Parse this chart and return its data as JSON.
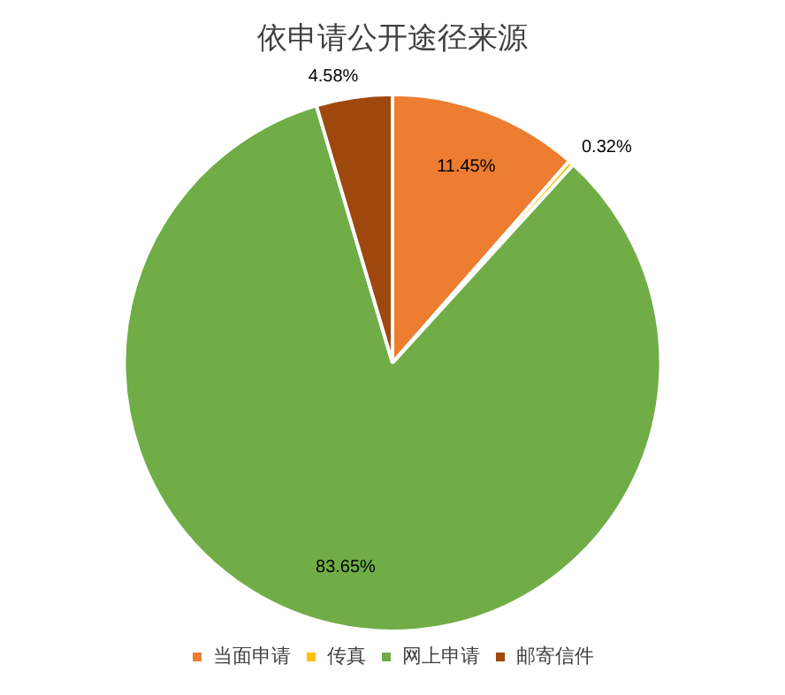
{
  "chart_data": {
    "type": "pie",
    "title": "依申请公开途径来源",
    "categories": [
      "当面申请",
      "传真",
      "网上申请",
      "邮寄信件"
    ],
    "values": [
      11.45,
      0.32,
      83.65,
      4.58
    ],
    "colors": [
      "#ed7d31",
      "#ffc000",
      "#70ad47",
      "#9e480e"
    ],
    "value_labels": [
      "11.45%",
      "0.32%",
      "83.65%",
      "4.58%"
    ],
    "legend": "bottom"
  }
}
